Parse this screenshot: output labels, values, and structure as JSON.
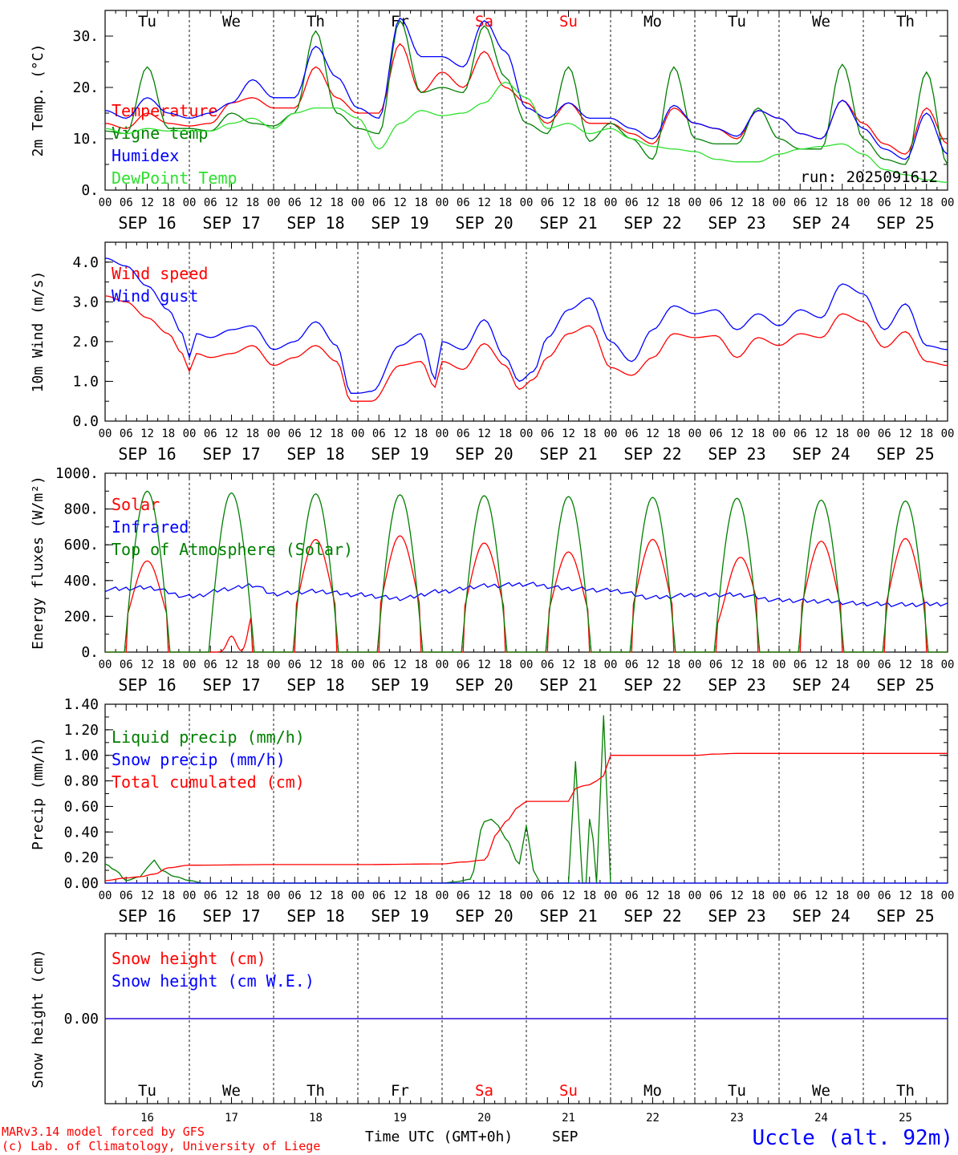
{
  "colors": {
    "red": "#ff0000",
    "blue": "#0000ff",
    "green": "#007f00",
    "lime": "#2ee02e",
    "black": "#000000"
  },
  "days": [
    {
      "abbr": "Tu",
      "date": "SEP 16",
      "num": "16",
      "weekend": false
    },
    {
      "abbr": "We",
      "date": "SEP 17",
      "num": "17",
      "weekend": false
    },
    {
      "abbr": "Th",
      "date": "SEP 18",
      "num": "18",
      "weekend": false
    },
    {
      "abbr": "Fr",
      "date": "SEP 19",
      "num": "19",
      "weekend": false
    },
    {
      "abbr": "Sa",
      "date": "SEP 20",
      "num": "20",
      "weekend": true
    },
    {
      "abbr": "Su",
      "date": "SEP 21",
      "num": "21",
      "weekend": true
    },
    {
      "abbr": "Mo",
      "date": "SEP 22",
      "num": "22",
      "weekend": false
    },
    {
      "abbr": "Tu",
      "date": "SEP 23",
      "num": "23",
      "weekend": false
    },
    {
      "abbr": "We",
      "date": "SEP 24",
      "num": "24",
      "weekend": false
    },
    {
      "abbr": "Th",
      "date": "SEP 25",
      "num": "25",
      "weekend": false
    }
  ],
  "hour_ticks": [
    "00",
    "06",
    "12",
    "18"
  ],
  "final_hour_tick": "00",
  "footer": {
    "credit_line1": "MARv3.14 model forced by GFS",
    "credit_line2": "(c) Lab. of Climatology, University of Liege",
    "xlabel": "Time UTC (GMT+0h)",
    "month": "SEP",
    "station": "Uccle (alt. 92m)"
  },
  "chart_data": [
    {
      "type": "line",
      "ylabel": "2m Temp. (°C)",
      "ylim": [
        0,
        35
      ],
      "ticks": [
        "0.",
        "10.",
        "20.",
        "30."
      ],
      "tick_values": [
        0,
        10,
        20,
        30
      ],
      "note": "run: 2025091612",
      "show_day_names": true,
      "x_unit": "hours since SEP 16 00 UTC",
      "series": [
        {
          "name": "Temperature",
          "color": "red",
          "x": [
            0,
            6,
            12,
            18,
            24,
            30,
            36,
            42,
            48,
            54,
            60,
            66,
            72,
            78,
            84,
            90,
            96,
            102,
            108,
            114,
            120,
            126,
            132,
            138,
            144,
            150,
            156,
            162,
            168,
            174,
            180,
            186,
            192,
            198,
            204,
            210,
            216,
            222,
            228,
            234,
            240
          ],
          "values": [
            13,
            12,
            15,
            13,
            12.5,
            13,
            17,
            18,
            16,
            16,
            24,
            18,
            15,
            15,
            28.5,
            19,
            23,
            20,
            27,
            20,
            17,
            13,
            17,
            13,
            13,
            11,
            9,
            16,
            13,
            12,
            10,
            15.5,
            14,
            11,
            10,
            17.5,
            13,
            9,
            7,
            16,
            9
          ]
        },
        {
          "name": "Vigne temp",
          "color": "green",
          "x": [
            0,
            6,
            12,
            18,
            24,
            30,
            36,
            42,
            48,
            54,
            60,
            66,
            72,
            78,
            84,
            90,
            96,
            102,
            108,
            114,
            120,
            126,
            132,
            138,
            144,
            150,
            156,
            162,
            168,
            174,
            180,
            186,
            192,
            198,
            204,
            210,
            216,
            222,
            228,
            234,
            240
          ],
          "values": [
            11.5,
            11,
            24,
            12,
            12,
            11.5,
            15,
            13,
            12.5,
            15,
            31,
            15,
            12,
            11,
            33,
            19,
            20,
            19,
            32,
            22,
            13,
            11,
            24,
            9.5,
            13,
            10,
            6,
            24,
            10,
            9,
            9,
            16,
            10,
            8,
            8,
            24.5,
            10,
            6,
            5,
            23,
            5
          ]
        },
        {
          "name": "Humidex",
          "color": "blue",
          "x": [
            0,
            6,
            12,
            18,
            24,
            30,
            36,
            42,
            48,
            54,
            60,
            66,
            72,
            78,
            84,
            90,
            96,
            102,
            108,
            114,
            120,
            126,
            132,
            138,
            144,
            150,
            156,
            162,
            168,
            174,
            180,
            186,
            192,
            198,
            204,
            210,
            216,
            222,
            228,
            234,
            240
          ],
          "values": [
            15.5,
            14,
            18,
            15,
            14,
            15,
            17,
            21.5,
            18,
            18,
            28,
            22,
            16,
            14,
            33.5,
            26,
            26,
            24,
            33,
            27,
            16,
            14,
            17,
            14,
            14,
            12,
            10,
            16.5,
            13,
            12,
            10.5,
            15.5,
            14,
            11,
            10,
            17.5,
            12,
            8,
            6,
            15,
            7
          ]
        },
        {
          "name": "DewPoint Temp",
          "color": "lime",
          "x": [
            0,
            6,
            12,
            18,
            24,
            30,
            36,
            42,
            48,
            54,
            60,
            66,
            72,
            78,
            84,
            90,
            96,
            102,
            108,
            114,
            120,
            126,
            132,
            138,
            144,
            150,
            156,
            162,
            168,
            174,
            180,
            186,
            192,
            198,
            204,
            210,
            216,
            222,
            228,
            234,
            240
          ],
          "values": [
            12,
            11,
            12,
            11.5,
            11.5,
            11.5,
            13,
            14,
            12,
            15,
            16,
            16,
            14,
            8,
            13,
            15.5,
            14.5,
            15,
            17,
            21,
            18,
            12,
            13,
            11,
            12,
            10,
            8.5,
            8,
            7.5,
            6,
            5.5,
            5.5,
            7,
            8,
            8.5,
            9,
            7,
            4,
            3,
            2,
            1.5
          ]
        }
      ]
    },
    {
      "type": "line",
      "ylabel": "10m Wind (m/s)",
      "ylim": [
        0,
        4.5
      ],
      "ticks": [
        "0.0",
        "1.0",
        "2.0",
        "3.0",
        "4.0"
      ],
      "tick_values": [
        0,
        1,
        2,
        3,
        4
      ],
      "x_unit": "hours since SEP 16 00 UTC",
      "series": [
        {
          "name": "Wind speed",
          "color": "red",
          "x": [
            0,
            6,
            12,
            18,
            22,
            24,
            26,
            30,
            36,
            42,
            48,
            54,
            60,
            66,
            70,
            72,
            76,
            84,
            90,
            94,
            96,
            102,
            108,
            114,
            118,
            122,
            126,
            132,
            138,
            144,
            150,
            156,
            162,
            168,
            174,
            180,
            186,
            192,
            198,
            204,
            210,
            216,
            222,
            228,
            234,
            240
          ],
          "values": [
            3.15,
            3.0,
            2.6,
            2.2,
            1.7,
            1.25,
            1.7,
            1.6,
            1.7,
            1.9,
            1.4,
            1.6,
            1.9,
            1.5,
            0.5,
            0.5,
            0.5,
            1.4,
            1.5,
            0.85,
            1.5,
            1.3,
            1.95,
            1.4,
            0.8,
            1.05,
            1.6,
            2.2,
            2.4,
            1.35,
            1.15,
            1.6,
            2.2,
            2.1,
            2.15,
            1.6,
            2.1,
            1.9,
            2.2,
            2.1,
            2.7,
            2.5,
            1.85,
            2.25,
            1.5,
            1.4
          ]
        },
        {
          "name": "Wind gust",
          "color": "blue",
          "x": [
            0,
            6,
            12,
            18,
            22,
            24,
            26,
            30,
            36,
            42,
            48,
            54,
            60,
            66,
            70,
            72,
            76,
            84,
            90,
            94,
            96,
            102,
            108,
            114,
            118,
            122,
            126,
            132,
            138,
            144,
            150,
            156,
            162,
            168,
            174,
            180,
            186,
            192,
            198,
            204,
            210,
            216,
            222,
            228,
            234,
            240
          ],
          "values": [
            4.1,
            3.9,
            3.4,
            2.8,
            2.2,
            1.6,
            2.2,
            2.1,
            2.3,
            2.4,
            1.8,
            2.0,
            2.5,
            1.9,
            0.7,
            0.7,
            0.75,
            1.9,
            2.2,
            1.05,
            2.0,
            1.8,
            2.55,
            1.6,
            1.0,
            1.25,
            2.1,
            2.8,
            3.1,
            2.0,
            1.5,
            2.3,
            2.9,
            2.7,
            2.8,
            2.3,
            2.7,
            2.4,
            2.8,
            2.6,
            3.45,
            3.2,
            2.3,
            2.95,
            1.9,
            1.8
          ]
        }
      ]
    },
    {
      "type": "line",
      "ylabel": "Energy fluxes (W/m²)",
      "ylim": [
        0,
        1000
      ],
      "ticks": [
        "0.",
        "200.",
        "400.",
        "600.",
        "800.",
        "1000."
      ],
      "tick_values": [
        0,
        200,
        400,
        600,
        800,
        1000
      ],
      "x_unit": "hours since SEP 16 00 UTC",
      "series": [
        {
          "name": "Solar",
          "color": "red",
          "peaks": [
            [
              12,
              510
            ],
            [
              17,
              200
            ],
            [
              36,
              90
            ],
            [
              42,
              210
            ],
            [
              60,
              630
            ],
            [
              84,
              650
            ],
            [
              108,
              610
            ],
            [
              132,
              560
            ],
            [
              156,
              630
            ],
            [
              181,
              530
            ],
            [
              204,
              620
            ],
            [
              228,
              635
            ]
          ],
          "daylight": [
            6,
            18
          ]
        },
        {
          "name": "Infrared",
          "color": "blue",
          "x": [
            0,
            12,
            24,
            36,
            42,
            48,
            60,
            72,
            84,
            96,
            108,
            120,
            132,
            144,
            156,
            168,
            180,
            192,
            204,
            216,
            228,
            240
          ],
          "values": [
            350,
            360,
            310,
            355,
            375,
            325,
            340,
            320,
            300,
            340,
            370,
            380,
            355,
            345,
            305,
            320,
            320,
            290,
            285,
            270,
            265,
            270
          ]
        },
        {
          "name": "Top of Atmosphere (Solar)",
          "color": "green",
          "peaks": [
            [
              12,
              900
            ],
            [
              36,
              890
            ],
            [
              60,
              885
            ],
            [
              84,
              880
            ],
            [
              108,
              875
            ],
            [
              132,
              870
            ],
            [
              156,
              865
            ],
            [
              180,
              860
            ],
            [
              204,
              850
            ],
            [
              228,
              845
            ]
          ],
          "daylight": [
            5.5,
            18.5
          ]
        }
      ]
    },
    {
      "type": "line",
      "ylabel": "Precip (mm/h)",
      "ylim": [
        0,
        1.4
      ],
      "ticks": [
        "0.00",
        "0.20",
        "0.40",
        "0.60",
        "0.80",
        "1.00",
        "1.20",
        "1.40"
      ],
      "tick_values": [
        0,
        0.2,
        0.4,
        0.6,
        0.8,
        1.0,
        1.2,
        1.4
      ],
      "x_unit": "hours since SEP 16 00 UTC",
      "series": [
        {
          "name": "Liquid precip (mm/h)",
          "color": "green",
          "x": [
            0,
            3,
            6,
            10,
            12,
            14,
            16,
            20,
            24,
            28,
            96,
            100,
            104,
            108,
            110,
            112,
            114,
            118,
            120,
            122,
            124,
            126,
            128,
            130,
            132,
            134,
            136,
            137,
            138,
            139,
            140,
            142,
            144,
            145,
            150,
            156
          ],
          "values": [
            0.15,
            0.1,
            0.02,
            0.05,
            0.12,
            0.18,
            0.1,
            0.05,
            0.02,
            0,
            0,
            0.01,
            0.03,
            0.48,
            0.5,
            0.45,
            0.35,
            0.15,
            0.45,
            0.1,
            0,
            0,
            0,
            0,
            0,
            0.95,
            0,
            0,
            0.5,
            0.35,
            0,
            1.31,
            0,
            0,
            0,
            0
          ]
        },
        {
          "name": "Snow precip (mm/h)",
          "color": "blue",
          "x": [
            0,
            240
          ],
          "values": [
            0,
            0
          ]
        },
        {
          "name": "Total cumulated (cm)",
          "color": "red",
          "x": [
            0,
            6,
            10,
            14,
            18,
            24,
            48,
            72,
            96,
            102,
            108,
            112,
            114,
            118,
            120,
            126,
            132,
            134,
            136,
            138,
            140,
            142,
            144,
            168,
            174,
            180,
            240
          ],
          "values": [
            0.02,
            0.04,
            0.05,
            0.07,
            0.12,
            0.14,
            0.145,
            0.145,
            0.15,
            0.165,
            0.18,
            0.4,
            0.48,
            0.6,
            0.64,
            0.64,
            0.64,
            0.74,
            0.76,
            0.77,
            0.8,
            0.84,
            1.0,
            1.0,
            1.01,
            1.015,
            1.015
          ]
        }
      ]
    },
    {
      "type": "line",
      "ylabel": "Snow height (cm)",
      "ylim": [
        -1,
        1
      ],
      "ticks": [
        "0.00"
      ],
      "tick_values": [
        0
      ],
      "bottom_days": true,
      "x_unit": "hours since SEP 16 00 UTC",
      "series": [
        {
          "name": "Snow height (cm)",
          "color": "red",
          "x": [
            0,
            240
          ],
          "values": [
            0,
            0
          ]
        },
        {
          "name": "Snow height (cm W.E.)",
          "color": "blue",
          "x": [
            0,
            240
          ],
          "values": [
            0,
            0
          ]
        }
      ]
    }
  ]
}
